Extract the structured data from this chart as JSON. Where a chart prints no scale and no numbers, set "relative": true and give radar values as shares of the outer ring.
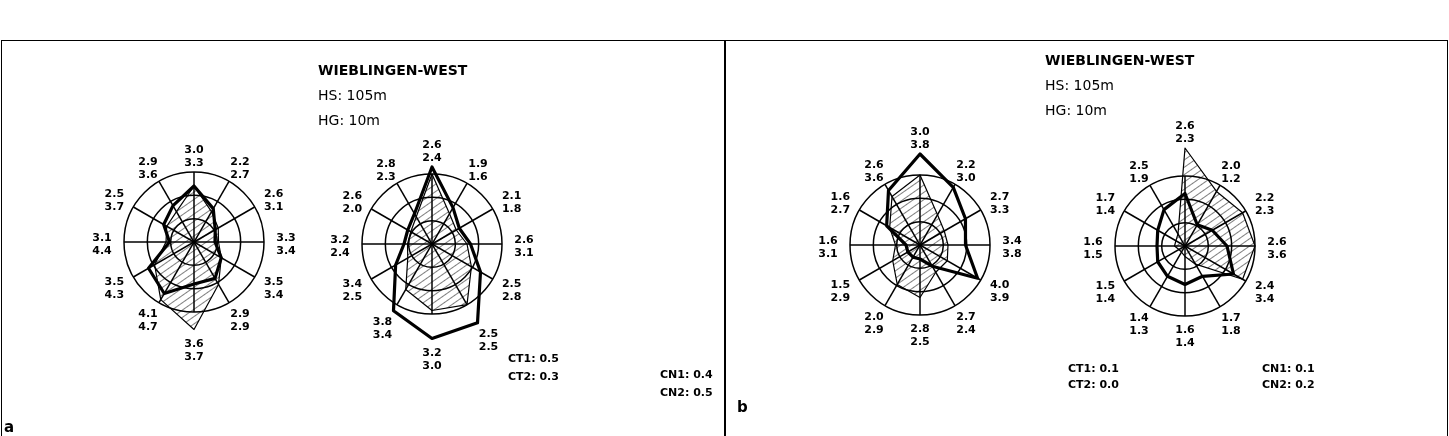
{
  "chart_data": [
    {
      "type": "radar",
      "annotations": [
        "CT1: 0.5",
        "CT2: 0.3",
        "a"
      ],
      "relative": true,
      "grid": true,
      "marker": "none",
      "categories": [
        "3.0\n3.3",
        "2.2\n2.7",
        "2.6\n3.1",
        "3.3\n3.4",
        "3.5\n3.4",
        "2.9\n2.9",
        "3.6\n3.7",
        "4.1\n4.7",
        "3.5\n4.3",
        "3.1\n4.4",
        "2.5\n3.7",
        "2.9\n3.6"
      ],
      "series": [
        {
          "color": "#000000",
          "values": [
            0.8,
            0.55,
            0.35,
            0.3,
            0.45,
            0.6,
            0.6,
            0.85,
            0.75,
            0.35,
            0.5,
            0.6
          ]
        },
        {
          "color": "#000000",
          "values": [
            0.8,
            0.5,
            0.4,
            0.35,
            0.45,
            0.7,
            1.25,
            0.95,
            0.65,
            0.4,
            0.45,
            0.5
          ]
        }
      ]
    },
    {
      "type": "radar",
      "title": "WIEBLINGEN-WEST",
      "subtitle": "HS: 105m",
      "annotations": [
        "HG: 10m",
        "CN1: 0.4",
        "CN2: 0.5"
      ],
      "relative": true,
      "grid": true,
      "marker": "none",
      "categories": [
        "2.6\n2.4",
        "1.9\n1.6",
        "2.1\n1.8",
        "2.6\n3.1",
        "2.5\n2.8",
        "2.5\n2.5",
        "3.2\n3.0",
        "3.8\n3.4",
        "3.4\n2.5",
        "3.2\n2.4",
        "2.6\n2.0",
        "2.8\n2.3"
      ],
      "series": [
        {
          "color": "#000000",
          "values": [
            1.1,
            0.6,
            0.45,
            0.55,
            0.8,
            1.3,
            1.35,
            1.1,
            0.6,
            0.4,
            0.4,
            0.5
          ]
        },
        {
          "color": "#000000",
          "values": [
            1.0,
            0.5,
            0.4,
            0.5,
            0.65,
            1.0,
            0.95,
            0.75,
            0.4,
            0.35,
            0.35,
            0.45
          ]
        }
      ]
    },
    {
      "type": "radar",
      "title": "WIEBLINGEN-WEST",
      "subtitle": "HS: 105m",
      "annotations": [
        "HG: 10m",
        "CT1: 0.1",
        "CT2: 0.0",
        "b"
      ],
      "relative": true,
      "grid": true,
      "marker": "none",
      "categories": [
        "3.0\n3.8",
        "2.2\n3.0",
        "2.7\n3.3",
        "3.4\n3.8",
        "4.0\n3.9",
        "2.7\n2.4",
        "2.8\n2.5",
        "2.0\n2.9",
        "1.5\n2.9",
        "1.6\n3.1",
        "1.6\n2.7",
        "2.6\n3.6"
      ],
      "series": [
        {
          "color": "#000000",
          "values": [
            1.3,
            0.95,
            0.75,
            0.65,
            0.95,
            0.35,
            0.2,
            0.2,
            0.2,
            0.2,
            0.55,
            0.9
          ]
        },
        {
          "color": "#000000",
          "values": [
            1.0,
            0.5,
            0.4,
            0.4,
            0.45,
            0.45,
            0.75,
            0.65,
            0.45,
            0.35,
            0.5,
            0.8
          ]
        }
      ]
    },
    {
      "type": "radar",
      "annotations": [
        "CN1: 0.1",
        "CN2: 0.2"
      ],
      "relative": true,
      "grid": true,
      "marker": "none",
      "categories": [
        "2.6\n2.3",
        "2.0\n1.2",
        "2.2\n2.3",
        "2.6\n3.6",
        "2.4\n3.4",
        "1.7\n1.8",
        "1.6\n1.4",
        "1.4\n1.3",
        "1.5\n1.4",
        "1.6\n1.5",
        "1.7\n1.4",
        "2.5\n1.9"
      ],
      "series": [
        {
          "color": "#000000",
          "values": [
            0.75,
            0.35,
            0.45,
            0.6,
            0.8,
            0.5,
            0.55,
            0.5,
            0.45,
            0.4,
            0.45,
            0.6
          ]
        },
        {
          "color": "#000000",
          "values": [
            1.4,
            0.9,
            0.95,
            1.0,
            0.95,
            0.3,
            0.15,
            0.1,
            0.1,
            0.15,
            0.15,
            0.2
          ]
        }
      ]
    }
  ]
}
